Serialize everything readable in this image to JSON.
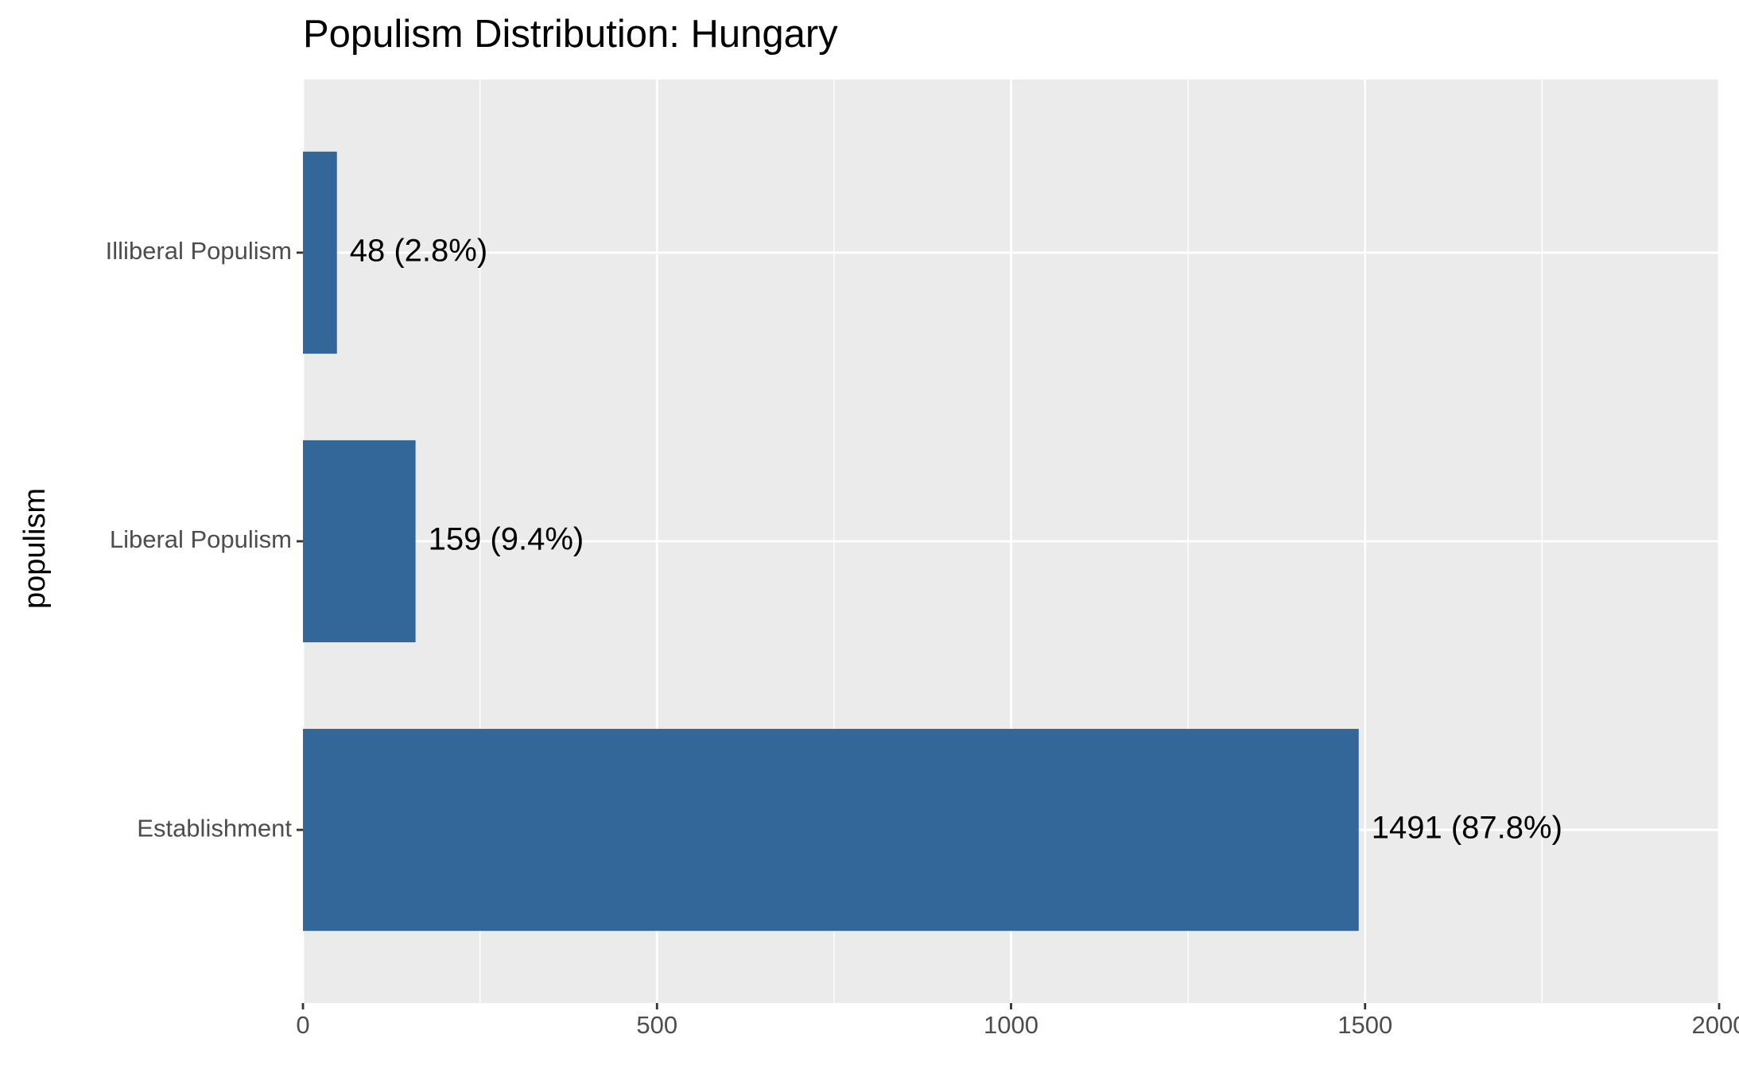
{
  "chart_data": {
    "type": "bar",
    "orientation": "horizontal",
    "title": "Populism Distribution: Hungary",
    "y_label": "populism",
    "categories": [
      "Illiberal Populism",
      "Liberal Populism",
      "Establishment"
    ],
    "values": [
      48,
      159,
      1491
    ],
    "value_labels": [
      "48 (2.8%)",
      "159 (9.4%)",
      "1491 (87.8%)"
    ],
    "color": "#336699",
    "xlim": [
      0,
      2000
    ],
    "xticks": [
      0,
      500,
      1000,
      1500,
      2000
    ],
    "grid": true
  }
}
